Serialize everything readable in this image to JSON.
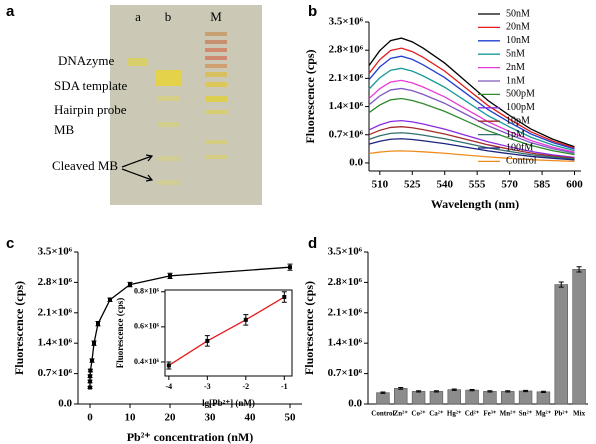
{
  "gel": {
    "panel_label": "a",
    "lanes": [
      "a",
      "b",
      "M"
    ],
    "bands": [
      "DNAzyme",
      "SDA template",
      "Hairpin probe",
      "MB",
      "Cleaved MB"
    ]
  },
  "chart_data": [
    {
      "type": "line",
      "panel_label": "b",
      "x_label": "Wavelength (nm)",
      "y_label": "Fluorescence (cps)",
      "legend": "upper right",
      "x": [
        505,
        510,
        515,
        520,
        525,
        530,
        540,
        550,
        560,
        570,
        580,
        590,
        600
      ],
      "xlim": [
        505,
        603
      ],
      "xticks": [
        510,
        525,
        540,
        555,
        570,
        585,
        600
      ],
      "ylim": [
        -200000,
        3500000
      ],
      "yticks": [
        {
          "value": 0,
          "label": "0.0"
        },
        {
          "value": 700000,
          "label": "0.7×10⁶"
        },
        {
          "value": 1400000,
          "label": "1.4×10⁶"
        },
        {
          "value": 2100000,
          "label": "2.1×10⁶"
        },
        {
          "value": 2800000,
          "label": "2.8×10⁶"
        },
        {
          "value": 3500000,
          "label": "3.5×10⁶"
        }
      ],
      "series": [
        {
          "name": "50nM",
          "color": "#000000",
          "values": [
            2418000,
            2790000,
            3038000,
            3100000,
            3007000,
            2852000,
            2480000,
            2015000,
            1550000,
            1178000,
            837000,
            589000,
            403000
          ]
        },
        {
          "name": "20nM",
          "color": "#e41a1c",
          "values": [
            2223000,
            2565000,
            2793000,
            2850000,
            2765000,
            2622000,
            2280000,
            1853000,
            1425000,
            1083000,
            770000,
            542000,
            371000
          ]
        },
        {
          "name": "10nM",
          "color": "#1f3fd1",
          "values": [
            2067000,
            2385000,
            2597000,
            2650000,
            2571000,
            2438000,
            2120000,
            1723000,
            1325000,
            1007000,
            716000,
            504000,
            345000
          ]
        },
        {
          "name": "5nM",
          "color": "#1a9a9a",
          "values": [
            1833000,
            2115000,
            2303000,
            2350000,
            2280000,
            2162000,
            1880000,
            1528000,
            1175000,
            893000,
            635000,
            447000,
            306000
          ]
        },
        {
          "name": "2nM",
          "color": "#e83ad8",
          "values": [
            1599000,
            1845000,
            2009000,
            2050000,
            1989000,
            1886000,
            1640000,
            1333000,
            1025000,
            779000,
            554000,
            390000,
            267000
          ]
        },
        {
          "name": "1nM",
          "color": "#7e57c2",
          "values": [
            1443000,
            1665000,
            1813000,
            1850000,
            1795000,
            1702000,
            1480000,
            1203000,
            925000,
            703000,
            500000,
            352000,
            241000
          ]
        },
        {
          "name": "500pM",
          "color": "#2e8b2e",
          "values": [
            1248000,
            1440000,
            1568000,
            1600000,
            1552000,
            1472000,
            1280000,
            1040000,
            800000,
            608000,
            432000,
            304000,
            208000
          ]
        },
        {
          "name": "100pM",
          "color": "#8a2be2",
          "values": [
            819000,
            945000,
            1029000,
            1050000,
            1019000,
            966000,
            840000,
            683000,
            525000,
            399000,
            284000,
            200000,
            137000
          ]
        },
        {
          "name": "10pM",
          "color": "#a52a2a",
          "values": [
            702000,
            810000,
            882000,
            900000,
            873000,
            828000,
            720000,
            585000,
            450000,
            342000,
            243000,
            171000,
            117000
          ]
        },
        {
          "name": "1pM",
          "color": "#2f6f6f",
          "values": [
            585000,
            675000,
            735000,
            750000,
            728000,
            690000,
            600000,
            488000,
            375000,
            285000,
            203000,
            143000,
            98000
          ]
        },
        {
          "name": "100fM",
          "color": "#1a237e",
          "values": [
            468000,
            540000,
            588000,
            600000,
            582000,
            552000,
            480000,
            390000,
            300000,
            228000,
            162000,
            114000,
            78000
          ]
        },
        {
          "name": "Control",
          "color": "#f08c1e",
          "values": [
            234000,
            270000,
            294000,
            300000,
            291000,
            276000,
            240000,
            195000,
            150000,
            114000,
            81000,
            57000,
            39000
          ]
        }
      ]
    },
    {
      "type": "line",
      "panel_label": "c",
      "x_label": "Pb²⁺ concentration (nM)",
      "y_label": "Fluorescence (cps)",
      "x": [
        0.0001,
        0.001,
        0.01,
        0.1,
        0.5,
        1,
        2,
        5,
        10,
        20,
        50
      ],
      "xlim": [
        -3,
        53
      ],
      "xticks": [
        0,
        10,
        20,
        30,
        40,
        50
      ],
      "ylim": [
        0,
        3500000
      ],
      "yticks": [
        {
          "value": 0,
          "label": "0.0"
        },
        {
          "value": 700000,
          "label": "0.7×10⁶"
        },
        {
          "value": 1400000,
          "label": "1.4×10⁶"
        },
        {
          "value": 2100000,
          "label": "2.1×10⁶"
        },
        {
          "value": 2800000,
          "label": "2.8×10⁶"
        },
        {
          "value": 3500000,
          "label": "3.5×10⁶"
        }
      ],
      "series": [
        {
          "color": "#000000",
          "marker_color": "#000000",
          "values": [
            380000,
            520000,
            640000,
            770000,
            1000000,
            1400000,
            1850000,
            2400000,
            2750000,
            2950000,
            3150000
          ],
          "errors": [
            20000,
            30000,
            30000,
            30000,
            40000,
            50000,
            50000,
            40000,
            50000,
            60000,
            70000
          ]
        }
      ]
    },
    {
      "type": "line",
      "x_label": "lg[Pb²⁺] (nM)",
      "y_label": "Fluorescence (cps)",
      "x": [
        -4,
        -3,
        -2,
        -1
      ],
      "xlim": [
        -4.1,
        -0.8
      ],
      "xticks": [
        -4,
        -3,
        -2,
        -1
      ],
      "ylim": [
        320000,
        810000
      ],
      "yticks": [
        {
          "value": 400000,
          "label": "0.4×10⁶"
        },
        {
          "value": 600000,
          "label": "0.6×10⁶"
        },
        {
          "value": 800000,
          "label": "0.8×10⁶"
        }
      ],
      "series": [
        {
          "color": "#e41a1c",
          "marker_color": "#000000",
          "values": [
            380000,
            520000,
            640000,
            770000
          ],
          "errors": [
            20000,
            30000,
            30000,
            30000
          ]
        }
      ]
    },
    {
      "type": "bar",
      "panel_label": "d",
      "y_label": "Fluorescence (cps)",
      "color": "#8c8c8c",
      "categories": [
        "Control",
        "Zn²⁺",
        "Co²⁺",
        "Ca²⁺",
        "Hg²⁺",
        "Cd²⁺",
        "Fe³⁺",
        "Mn²⁺",
        "Sn²⁺",
        "Mg²⁺",
        "Pb²⁺",
        "Mix"
      ],
      "values": [
        260000,
        360000,
        290000,
        290000,
        330000,
        320000,
        290000,
        290000,
        300000,
        280000,
        2750000,
        3100000
      ],
      "errors": [
        15000,
        20000,
        15000,
        15000,
        15000,
        15000,
        15000,
        15000,
        15000,
        15000,
        60000,
        60000
      ],
      "ylim": [
        0,
        3500000
      ],
      "yticks": [
        {
          "value": 0,
          "label": "0.0"
        },
        {
          "value": 700000,
          "label": "0.7×10⁶"
        },
        {
          "value": 1400000,
          "label": "1.4×10⁶"
        },
        {
          "value": 2100000,
          "label": "2.1×10⁶"
        },
        {
          "value": 2800000,
          "label": "2.8×10⁶"
        },
        {
          "value": 3500000,
          "label": "3.5×10⁶"
        }
      ]
    }
  ]
}
